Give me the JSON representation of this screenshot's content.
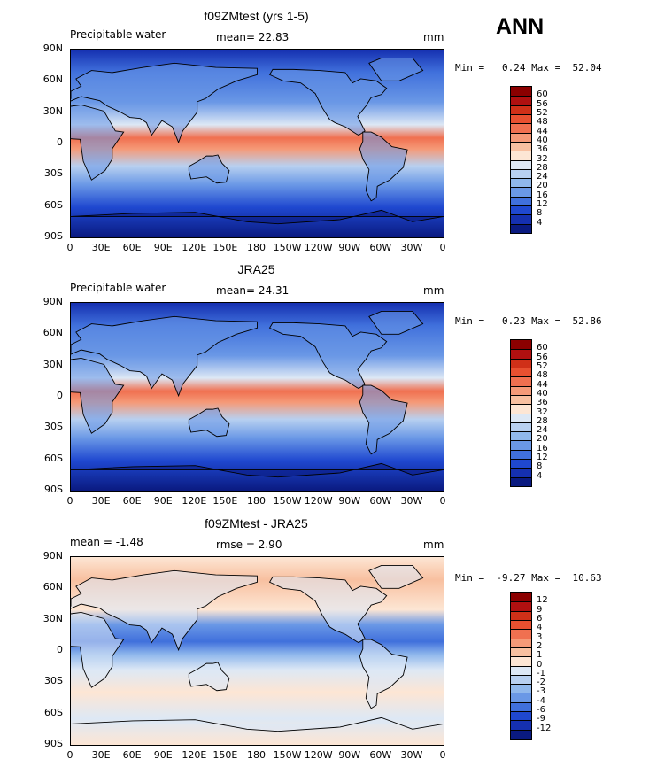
{
  "season": "ANN",
  "panels": [
    {
      "title": "f09ZMtest (yrs 1-5)",
      "left_label": "Precipitable water",
      "center_label": "mean=  22.83",
      "units": "mm",
      "minmax": "Min =   0.24 Max =  52.04",
      "levels": [
        "60",
        "56",
        "52",
        "48",
        "44",
        "40",
        "36",
        "32",
        "28",
        "24",
        "20",
        "16",
        "12",
        "8",
        "4"
      ],
      "colors": [
        "#8b0000",
        "#b01010",
        "#d03018",
        "#e85030",
        "#f07050",
        "#f59a78",
        "#f8c0a0",
        "#fde6d4",
        "#dde8f5",
        "#b8d0f0",
        "#90b8ec",
        "#6a98e6",
        "#4070dc",
        "#1f48d0",
        "#1530b0",
        "#0a1a80"
      ]
    },
    {
      "title": "JRA25",
      "left_label": "Precipitable water",
      "center_label": "mean=  24.31",
      "units": "mm",
      "minmax": "Min =   0.23 Max =  52.86",
      "levels": [
        "60",
        "56",
        "52",
        "48",
        "44",
        "40",
        "36",
        "32",
        "28",
        "24",
        "20",
        "16",
        "12",
        "8",
        "4"
      ],
      "colors": [
        "#8b0000",
        "#b01010",
        "#d03018",
        "#e85030",
        "#f07050",
        "#f59a78",
        "#f8c0a0",
        "#fde6d4",
        "#dde8f5",
        "#b8d0f0",
        "#90b8ec",
        "#6a98e6",
        "#4070dc",
        "#1f48d0",
        "#1530b0",
        "#0a1a80"
      ]
    },
    {
      "title": "f09ZMtest - JRA25",
      "left_label": "mean =  -1.48",
      "center_label": "rmse =   2.90",
      "units": "mm",
      "minmax": "Min =  -9.27 Max =  10.63",
      "levels": [
        "12",
        "9",
        "6",
        "4",
        "3",
        "2",
        "1",
        "0",
        "-1",
        "-2",
        "-3",
        "-4",
        "-6",
        "-9",
        "-12"
      ],
      "colors": [
        "#8b0000",
        "#b01010",
        "#d03018",
        "#e85030",
        "#f07050",
        "#f59a78",
        "#f8c0a0",
        "#fde6d4",
        "#dde8f5",
        "#b8d0f0",
        "#90b8ec",
        "#6a98e6",
        "#4070dc",
        "#1f48d0",
        "#1530b0",
        "#0a1a80"
      ]
    }
  ],
  "lat_labels": [
    "90N",
    "60N",
    "30N",
    "0",
    "30S",
    "60S",
    "90S"
  ],
  "lon_labels": [
    "0",
    "30E",
    "60E",
    "90E",
    "120E",
    "150E",
    "180",
    "150W",
    "120W",
    "90W",
    "60W",
    "30W",
    "0"
  ]
}
